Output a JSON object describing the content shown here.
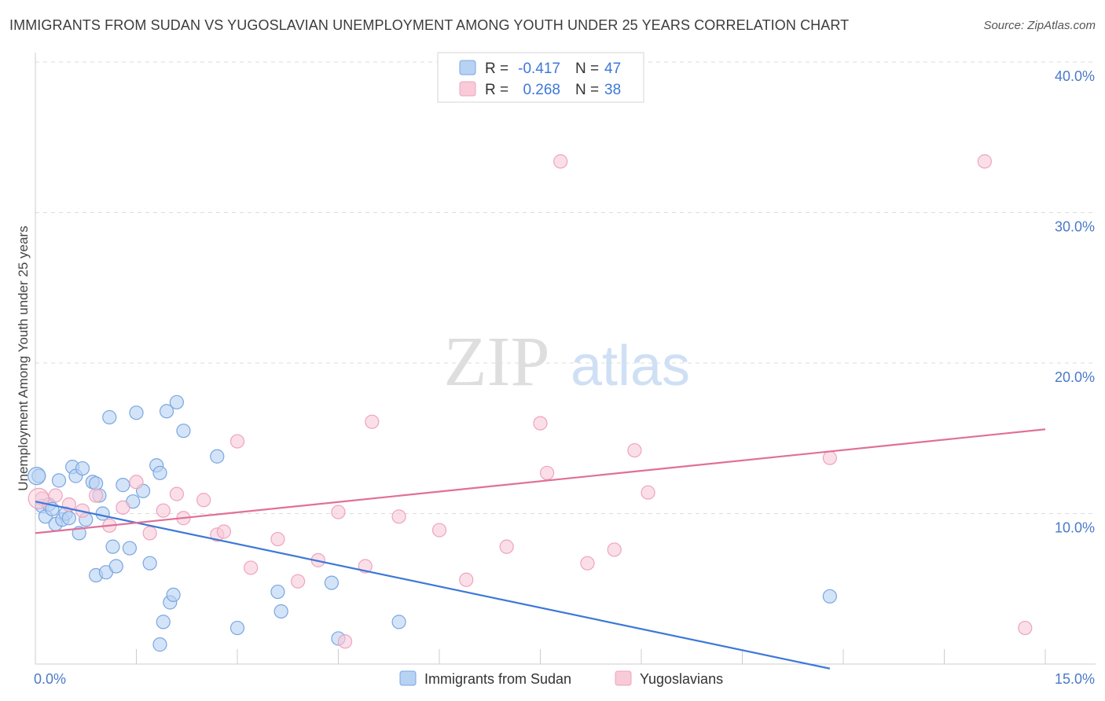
{
  "title": "IMMIGRANTS FROM SUDAN VS YUGOSLAVIAN UNEMPLOYMENT AMONG YOUTH UNDER 25 YEARS CORRELATION CHART",
  "source": "Source: ZipAtlas.com",
  "watermark": {
    "zip": "ZIP",
    "atlas": "atlas"
  },
  "colors": {
    "blue_fill": "#b8d2f3",
    "blue_stroke": "#7aa6e0",
    "blue_line": "#3d78d8",
    "pink_fill": "#f9cad8",
    "pink_stroke": "#eea4bc",
    "pink_line": "#e07098",
    "tick_text": "#4a7ac8",
    "grid": "#dddddd"
  },
  "legend": {
    "rows": [
      {
        "r_label": "R =",
        "r_value": "-0.417",
        "n_label": "N =",
        "n_value": "47",
        "series": "blue"
      },
      {
        "r_label": "R =",
        "r_value": "0.268",
        "n_label": "N =",
        "n_value": "38",
        "series": "pink"
      }
    ]
  },
  "chart_data": {
    "type": "scatter",
    "title": "IMMIGRANTS FROM SUDAN VS YUGOSLAVIAN UNEMPLOYMENT AMONG YOUTH UNDER 25 YEARS CORRELATION CHART",
    "xlabel": "",
    "ylabel": "Unemployment Among Youth under 25 years",
    "xlim": [
      0,
      15
    ],
    "ylim": [
      0,
      40
    ],
    "x_tick_labels": [
      "0.0%",
      "15.0%"
    ],
    "y_ticks": [
      10,
      20,
      30,
      40
    ],
    "y_tick_labels": [
      "10.0%",
      "20.0%",
      "30.0%",
      "40.0%"
    ],
    "grid": "horizontal dashed",
    "legend_position": "top-center",
    "series": [
      {
        "name": "Immigrants from Sudan",
        "color": "blue",
        "trend": {
          "x": [
            0.0,
            11.8
          ],
          "y": [
            10.8,
            -0.3
          ]
        },
        "points": [
          [
            0.05,
            12.5
          ],
          [
            0.1,
            10.5
          ],
          [
            0.15,
            9.8
          ],
          [
            0.2,
            10.6
          ],
          [
            0.3,
            9.3
          ],
          [
            0.35,
            12.2
          ],
          [
            0.4,
            9.6
          ],
          [
            0.45,
            10.0
          ],
          [
            0.5,
            9.7
          ],
          [
            0.55,
            13.1
          ],
          [
            0.6,
            12.5
          ],
          [
            0.65,
            8.7
          ],
          [
            0.7,
            13.0
          ],
          [
            0.75,
            9.6
          ],
          [
            0.85,
            12.1
          ],
          [
            0.9,
            5.9
          ],
          [
            0.95,
            11.2
          ],
          [
            1.0,
            10.0
          ],
          [
            1.05,
            6.1
          ],
          [
            1.1,
            16.4
          ],
          [
            1.15,
            7.8
          ],
          [
            1.2,
            6.5
          ],
          [
            1.3,
            11.9
          ],
          [
            1.4,
            7.7
          ],
          [
            1.45,
            10.8
          ],
          [
            1.5,
            16.7
          ],
          [
            1.6,
            11.5
          ],
          [
            1.7,
            6.7
          ],
          [
            1.8,
            13.2
          ],
          [
            1.85,
            12.7
          ],
          [
            1.9,
            2.8
          ],
          [
            1.95,
            16.8
          ],
          [
            2.0,
            4.1
          ],
          [
            2.05,
            4.6
          ],
          [
            2.1,
            17.4
          ],
          [
            2.2,
            15.5
          ],
          [
            2.7,
            13.8
          ],
          [
            3.0,
            2.4
          ],
          [
            3.6,
            4.8
          ],
          [
            3.65,
            3.5
          ],
          [
            4.4,
            5.4
          ],
          [
            4.5,
            1.7
          ],
          [
            5.4,
            2.8
          ],
          [
            11.8,
            4.5
          ],
          [
            1.85,
            1.3
          ],
          [
            0.9,
            12.0
          ],
          [
            0.25,
            10.3
          ]
        ]
      },
      {
        "name": "Yugoslavians",
        "color": "pink",
        "trend": {
          "x": [
            0.0,
            15.0
          ],
          "y": [
            8.7,
            15.6
          ]
        },
        "points": [
          [
            0.1,
            11.0
          ],
          [
            0.3,
            11.2
          ],
          [
            0.5,
            10.6
          ],
          [
            0.7,
            10.2
          ],
          [
            0.9,
            11.2
          ],
          [
            1.1,
            9.2
          ],
          [
            1.3,
            10.4
          ],
          [
            1.5,
            12.1
          ],
          [
            1.7,
            8.7
          ],
          [
            1.9,
            10.2
          ],
          [
            2.1,
            11.3
          ],
          [
            2.2,
            9.7
          ],
          [
            2.5,
            10.9
          ],
          [
            2.7,
            8.6
          ],
          [
            2.8,
            8.8
          ],
          [
            3.0,
            14.8
          ],
          [
            3.2,
            6.4
          ],
          [
            3.6,
            8.3
          ],
          [
            3.9,
            5.5
          ],
          [
            4.2,
            6.9
          ],
          [
            4.5,
            10.1
          ],
          [
            4.6,
            1.5
          ],
          [
            4.9,
            6.5
          ],
          [
            5.0,
            16.1
          ],
          [
            5.4,
            9.8
          ],
          [
            6.0,
            8.9
          ],
          [
            6.4,
            5.6
          ],
          [
            7.0,
            7.8
          ],
          [
            7.5,
            16.0
          ],
          [
            7.6,
            12.7
          ],
          [
            7.8,
            33.4
          ],
          [
            8.2,
            6.7
          ],
          [
            8.6,
            7.6
          ],
          [
            8.9,
            14.2
          ],
          [
            9.1,
            11.4
          ],
          [
            11.8,
            13.7
          ],
          [
            14.1,
            33.4
          ],
          [
            14.7,
            2.4
          ]
        ]
      }
    ]
  },
  "bottom_legend": [
    {
      "label": "Immigrants from Sudan",
      "series": "blue"
    },
    {
      "label": "Yugoslavians",
      "series": "pink"
    }
  ]
}
